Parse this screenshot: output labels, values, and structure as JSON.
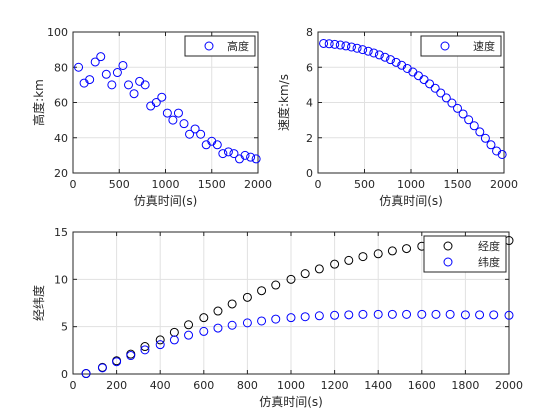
{
  "chart_data": [
    {
      "type": "scatter",
      "xlabel": "仿真时间(s)",
      "ylabel": "高度:km",
      "xlim": [
        0,
        2000
      ],
      "ylim": [
        20,
        100
      ],
      "xticks": [
        0,
        500,
        1000,
        1500,
        2000
      ],
      "yticks": [
        20,
        40,
        60,
        80,
        100
      ],
      "grid": true,
      "legend_position": "top-right",
      "series": [
        {
          "name": "高度",
          "color": "#0000ff",
          "x": [
            60,
            120,
            180,
            240,
            300,
            360,
            420,
            480,
            540,
            600,
            660,
            720,
            780,
            840,
            900,
            960,
            1020,
            1080,
            1140,
            1200,
            1260,
            1320,
            1380,
            1440,
            1500,
            1560,
            1620,
            1680,
            1740,
            1800,
            1860,
            1920,
            1980
          ],
          "y": [
            80,
            71,
            73,
            83,
            86,
            76,
            70,
            77,
            81,
            70,
            65,
            72,
            70,
            58,
            60,
            63,
            54,
            50,
            54,
            48,
            42,
            45,
            42,
            36,
            38,
            36,
            31,
            32,
            31,
            28,
            30,
            29,
            28
          ]
        }
      ]
    },
    {
      "type": "scatter",
      "xlabel": "仿真时间(s)",
      "ylabel": "速度:km/s",
      "xlim": [
        0,
        2000
      ],
      "ylim": [
        0,
        8
      ],
      "xticks": [
        0,
        500,
        1000,
        1500,
        2000
      ],
      "yticks": [
        0,
        2,
        4,
        6,
        8
      ],
      "grid": true,
      "legend_position": "top-right",
      "series": [
        {
          "name": "速度",
          "color": "#0000ff",
          "x": [
            60,
            120,
            180,
            240,
            300,
            360,
            420,
            480,
            540,
            600,
            660,
            720,
            780,
            840,
            900,
            960,
            1020,
            1080,
            1140,
            1200,
            1260,
            1320,
            1380,
            1440,
            1500,
            1560,
            1620,
            1680,
            1740,
            1800,
            1860,
            1920,
            1980
          ],
          "y": [
            7.35,
            7.33,
            7.3,
            7.26,
            7.21,
            7.15,
            7.08,
            7.0,
            6.91,
            6.81,
            6.7,
            6.57,
            6.43,
            6.28,
            6.11,
            5.93,
            5.73,
            5.52,
            5.3,
            5.06,
            4.81,
            4.54,
            4.26,
            3.97,
            3.67,
            3.35,
            3.02,
            2.68,
            2.33,
            1.97,
            1.6,
            1.25,
            1.05
          ]
        }
      ]
    },
    {
      "type": "scatter",
      "xlabel": "仿真时间(s)",
      "ylabel": "经纬度",
      "xlim": [
        0,
        2000
      ],
      "ylim": [
        0,
        15
      ],
      "xticks": [
        0,
        200,
        400,
        600,
        800,
        1000,
        1200,
        1400,
        1600,
        1800,
        2000
      ],
      "yticks": [
        0,
        5,
        10,
        15
      ],
      "grid": true,
      "legend_position": "top-right",
      "series": [
        {
          "name": "经度",
          "color": "#000000",
          "x": [
            60,
            135,
            200,
            265,
            330,
            400,
            465,
            530,
            600,
            665,
            730,
            800,
            865,
            930,
            1000,
            1065,
            1130,
            1200,
            1265,
            1330,
            1400,
            1465,
            1530,
            1600,
            1665,
            1730,
            1800,
            1865,
            1930,
            2000
          ],
          "y": [
            0.05,
            0.7,
            1.4,
            2.1,
            2.9,
            3.6,
            4.4,
            5.2,
            5.95,
            6.65,
            7.4,
            8.1,
            8.8,
            9.4,
            10.0,
            10.6,
            11.1,
            11.6,
            12.0,
            12.4,
            12.7,
            13.0,
            13.25,
            13.5,
            13.7,
            13.85,
            13.95,
            14.05,
            14.1,
            14.1
          ]
        },
        {
          "name": "纬度",
          "color": "#0000ff",
          "x": [
            60,
            135,
            200,
            265,
            330,
            400,
            465,
            530,
            600,
            665,
            730,
            800,
            865,
            930,
            1000,
            1065,
            1130,
            1200,
            1265,
            1330,
            1400,
            1465,
            1530,
            1600,
            1665,
            1730,
            1800,
            1865,
            1930,
            2000
          ],
          "y": [
            0.05,
            0.65,
            1.3,
            1.95,
            2.55,
            3.1,
            3.6,
            4.1,
            4.5,
            4.85,
            5.15,
            5.4,
            5.6,
            5.8,
            5.95,
            6.05,
            6.15,
            6.2,
            6.25,
            6.3,
            6.3,
            6.3,
            6.3,
            6.3,
            6.3,
            6.3,
            6.25,
            6.25,
            6.25,
            6.2
          ]
        }
      ]
    }
  ]
}
